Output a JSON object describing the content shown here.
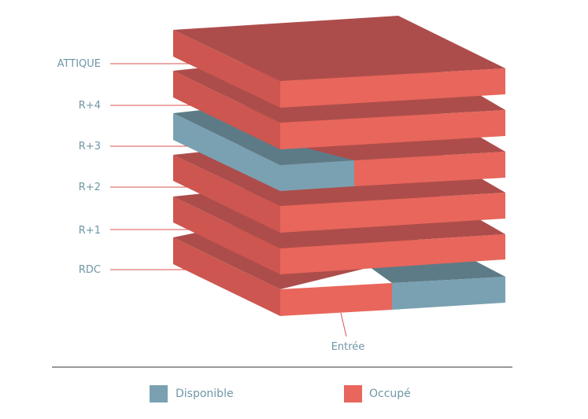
{
  "floors": [
    {
      "label": "ATTIQUE",
      "status": "Occupé"
    },
    {
      "label": "R+4",
      "status": "Occupé"
    },
    {
      "label": "R+3",
      "status": "Partiel"
    },
    {
      "label": "R+2",
      "status": "Occupé"
    },
    {
      "label": "R+1",
      "status": "Occupé"
    },
    {
      "label": "RDC",
      "status": "Partiel"
    }
  ],
  "entrance_label": "Entrée",
  "legend": {
    "available_label": "Disponible",
    "occupied_label": "Occupé"
  },
  "colors": {
    "occupied_front": "#e8665b",
    "occupied_side": "#cd5650",
    "occupied_top": "#ad4d4b",
    "available_front": "#7aa1b1",
    "available_side": "#7aa1b1",
    "available_top": "#5d7b87",
    "line_red": "#d9534f",
    "text_blue": "#6f97a6",
    "divider": "#333333"
  }
}
